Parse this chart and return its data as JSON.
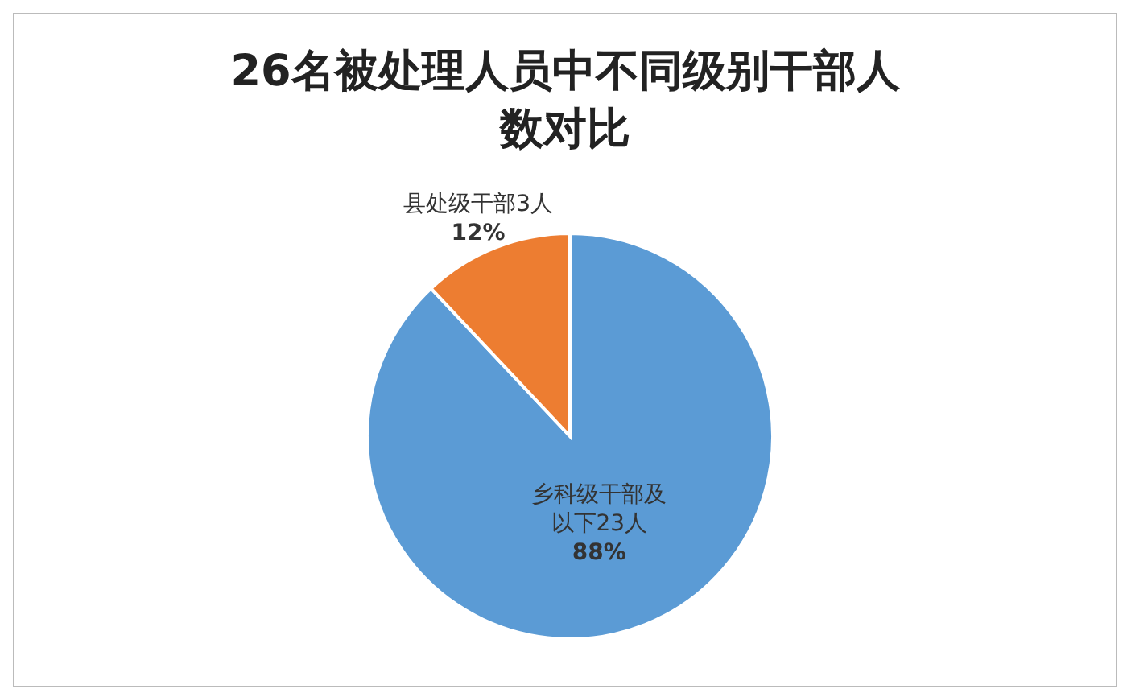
{
  "chart_data": {
    "type": "pie",
    "title": "26名被处理人员中不同级别干部人数对比",
    "categories": [
      "乡科级干部及以下23人",
      "县处级干部3人"
    ],
    "values": [
      88,
      12
    ],
    "value_labels": [
      "88%",
      "12%"
    ],
    "colors": [
      "#5b9bd5",
      "#ed7d31"
    ]
  }
}
